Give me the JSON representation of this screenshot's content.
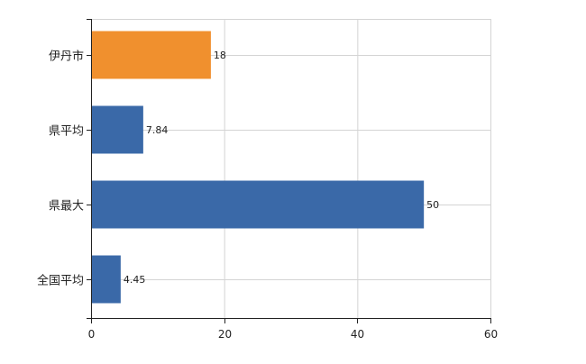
{
  "colors": {
    "highlight": "#F0902E",
    "default": "#3A69A8",
    "grid": "#d4d4d4",
    "axis": "#222222"
  },
  "chart_data": {
    "type": "bar",
    "orientation": "horizontal",
    "categories": [
      "伊丹市",
      "県平均",
      "県最大",
      "全国平均"
    ],
    "values": [
      18,
      7.84,
      50,
      4.45
    ],
    "value_labels": [
      "18",
      "7.84",
      "50",
      "4.45"
    ],
    "highlight_index": 0,
    "xlim": [
      0,
      60
    ],
    "x_ticks": [
      0,
      20,
      40,
      60
    ],
    "grid": true,
    "legend": "none"
  }
}
